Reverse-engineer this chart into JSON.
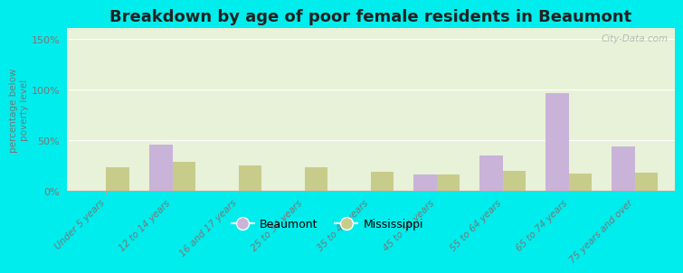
{
  "title": "Breakdown by age of poor female residents in Beaumont",
  "categories": [
    "Under 5 years",
    "12 to 14 years",
    "16 and 17 years",
    "25 to 34 years",
    "35 to 44 years",
    "45 to 54 years",
    "55 to 64 years",
    "65 to 74 years",
    "75 years and over"
  ],
  "beaumont_values": [
    0,
    46,
    0,
    0,
    0,
    16,
    35,
    96,
    44
  ],
  "mississippi_values": [
    23,
    29,
    25,
    23,
    19,
    16,
    20,
    17,
    18
  ],
  "beaumont_color": "#c9b3d9",
  "mississippi_color": "#c8cc8a",
  "ylabel": "percentage below\npoverty level",
  "ylim": [
    0,
    160
  ],
  "yticks": [
    0,
    50,
    100,
    150
  ],
  "ytick_labels": [
    "0%",
    "50%",
    "100%",
    "150%"
  ],
  "bar_width": 0.35,
  "title_fontsize": 13,
  "axis_bg_top": "#e8f2d8",
  "axis_bg_bottom": "#f0f8e0",
  "outer_bg_color": "#00eded",
  "watermark": "City-Data.com"
}
